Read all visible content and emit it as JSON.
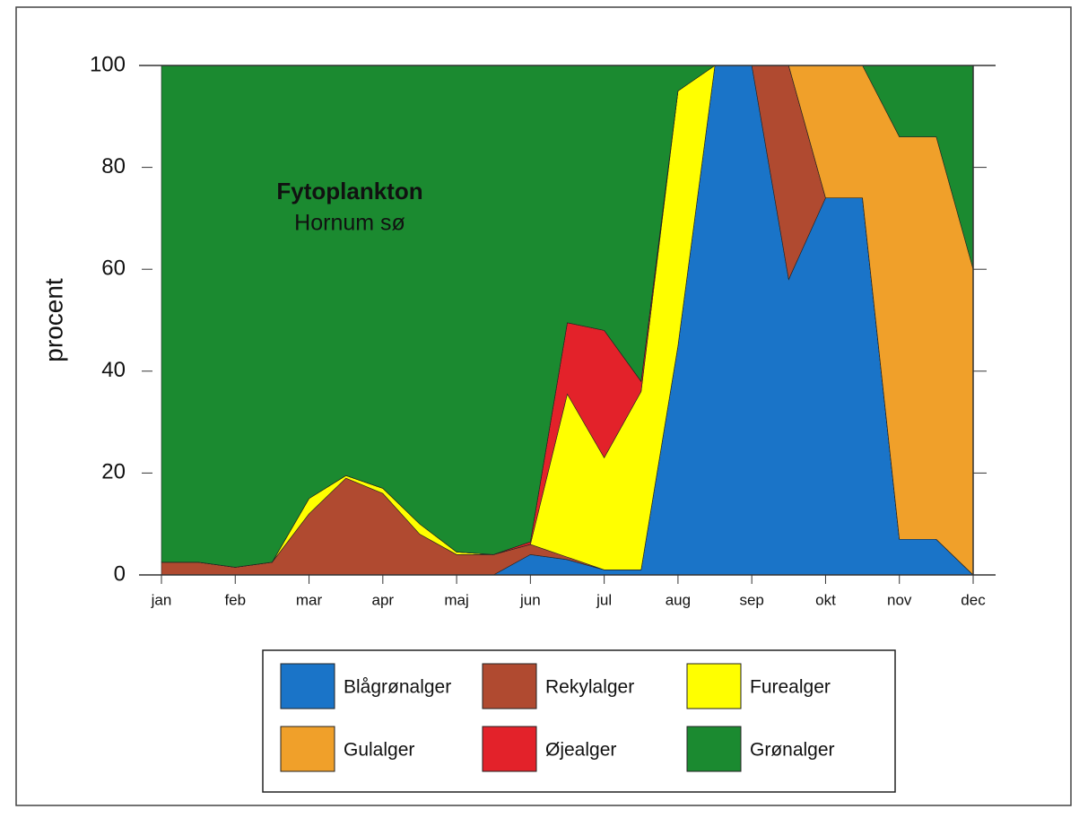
{
  "chart_data": {
    "type": "area",
    "stacked": true,
    "title": "Fytoplankton",
    "subtitle": "Hornum sø",
    "ylabel": "procent",
    "x": [
      0,
      0.5,
      1,
      1.5,
      2,
      2.5,
      3,
      3.5,
      4,
      4.5,
      5,
      5.5,
      6,
      6.5,
      7,
      7.5,
      8,
      8.5,
      9,
      9.5,
      10,
      10.5,
      11
    ],
    "xlim": [
      0,
      11
    ],
    "xticks": [
      {
        "value": 0,
        "label": "jan"
      },
      {
        "value": 1,
        "label": "feb"
      },
      {
        "value": 2,
        "label": "mar"
      },
      {
        "value": 3,
        "label": "apr"
      },
      {
        "value": 4,
        "label": "maj"
      },
      {
        "value": 5,
        "label": "jun"
      },
      {
        "value": 6,
        "label": "jul"
      },
      {
        "value": 7,
        "label": "aug"
      },
      {
        "value": 8,
        "label": "sep"
      },
      {
        "value": 9,
        "label": "okt"
      },
      {
        "value": 10,
        "label": "nov"
      },
      {
        "value": 11,
        "label": "dec"
      }
    ],
    "ylim": [
      0,
      100
    ],
    "yticks": [
      0,
      20,
      40,
      60,
      80,
      100
    ],
    "series": [
      {
        "name": "Blågrønalger",
        "color": "#1a74c8",
        "values": [
          0,
          0,
          0,
          0,
          0,
          0,
          0,
          0,
          0,
          0,
          4,
          3,
          1,
          1,
          45,
          100,
          100,
          58,
          74,
          74,
          7,
          7,
          0
        ]
      },
      {
        "name": "Rekylalger",
        "color": "#b04a30",
        "values": [
          2.5,
          2.5,
          1.5,
          2.5,
          12,
          19,
          16,
          8,
          4,
          4,
          2,
          0.5,
          0,
          0,
          0,
          0,
          0,
          42,
          0,
          0,
          0,
          0,
          0
        ]
      },
      {
        "name": "Furealger",
        "color": "#ffff00",
        "values": [
          0,
          0,
          0,
          0,
          3,
          0.5,
          1,
          2,
          0.5,
          0,
          0,
          32,
          22,
          35,
          50,
          0,
          0,
          0,
          0,
          0,
          0,
          0,
          0
        ]
      },
      {
        "name": "Øjealger",
        "color": "#e3222a",
        "values": [
          0,
          0,
          0,
          0,
          0,
          0,
          0,
          0,
          0,
          0,
          0.5,
          14,
          25,
          2,
          0,
          0,
          0,
          0,
          0,
          0,
          0,
          0,
          0
        ]
      },
      {
        "name": "Gulalger",
        "color": "#f0a02a",
        "values": [
          0,
          0,
          0,
          0,
          0,
          0,
          0,
          0,
          0,
          0,
          0,
          0,
          0,
          0,
          0,
          0,
          0,
          0,
          26,
          26,
          79,
          79,
          60
        ]
      },
      {
        "name": "Grønalger",
        "color": "#1b8a30",
        "values": [
          97.5,
          97.5,
          98.5,
          97.5,
          85,
          80.5,
          83,
          90,
          95.5,
          96,
          93.5,
          50.5,
          52,
          62,
          5,
          0,
          0,
          0,
          0,
          0,
          14,
          14,
          40
        ]
      }
    ]
  }
}
